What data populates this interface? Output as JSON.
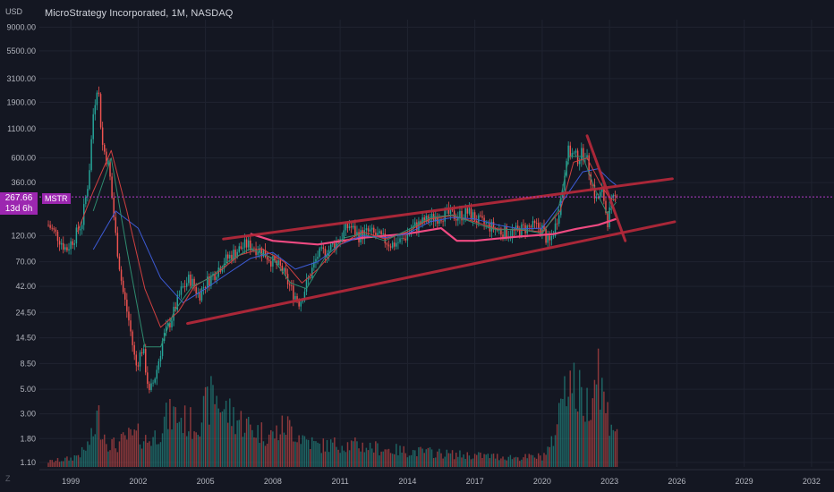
{
  "header": {
    "title": "MicroStrategy Incorporated, 1M, NASDAQ",
    "unit": "USD"
  },
  "price_badge": {
    "price": "267.66",
    "countdown": "13d 6h",
    "ticker": "MSTR"
  },
  "footer_mark": "Z",
  "colors": {
    "background": "#141722",
    "grid": "#1f2330",
    "up": "#26a69a",
    "down": "#ef5350",
    "trendline": "#b2283a",
    "price_line": "#b43cc8",
    "ma_pink": "#f04a82",
    "ma_blue": "#3d5bd6",
    "ma_red": "#d04040",
    "ma_green": "#2e8b6f"
  },
  "chart_data": {
    "type": "candlestick",
    "title": "MicroStrategy Incorporated, 1M, NASDAQ",
    "y_scale": "log",
    "ylabel": "USD",
    "ylim": [
      1.0,
      10500
    ],
    "xlim": [
      1997.6,
      2033.0
    ],
    "y_ticks": [
      "9000.00",
      "5500.00",
      "3100.00",
      "1900.00",
      "1100.00",
      "600.00",
      "360.00",
      "267.66",
      "120.00",
      "70.00",
      "42.00",
      "24.50",
      "14.50",
      "8.50",
      "5.00",
      "3.00",
      "1.80",
      "1.10"
    ],
    "y_tick_values": [
      9000,
      5500,
      3100,
      1900,
      1100,
      600,
      360,
      267.66,
      120,
      70,
      42,
      24.5,
      14.5,
      8.5,
      5,
      3,
      1.8,
      1.1
    ],
    "x_ticks": [
      "1999",
      "2002",
      "2005",
      "2008",
      "2011",
      "2014",
      "2017",
      "2020",
      "2023",
      "2026",
      "2029",
      "2032"
    ],
    "x_tick_values": [
      1999,
      2002,
      2005,
      2008,
      2011,
      2014,
      2017,
      2020,
      2023,
      2026,
      2029,
      2032
    ],
    "last_price": 267.66,
    "grid": true,
    "price_path": [
      [
        1998.0,
        150
      ],
      [
        1998.4,
        120
      ],
      [
        1998.8,
        90
      ],
      [
        1999.2,
        120
      ],
      [
        1999.5,
        160
      ],
      [
        1999.8,
        400
      ],
      [
        2000.0,
        1500
      ],
      [
        2000.2,
        3000
      ],
      [
        2000.4,
        800
      ],
      [
        2000.7,
        500
      ],
      [
        2001.0,
        120
      ],
      [
        2001.3,
        40
      ],
      [
        2001.6,
        20
      ],
      [
        2001.9,
        8
      ],
      [
        2002.2,
        12
      ],
      [
        2002.5,
        4.5
      ],
      [
        2002.8,
        7
      ],
      [
        2003.1,
        14
      ],
      [
        2003.5,
        22
      ],
      [
        2003.9,
        38
      ],
      [
        2004.3,
        50
      ],
      [
        2004.7,
        35
      ],
      [
        2005.0,
        45
      ],
      [
        2005.4,
        55
      ],
      [
        2005.8,
        70
      ],
      [
        2006.3,
        85
      ],
      [
        2006.8,
        100
      ],
      [
        2007.2,
        95
      ],
      [
        2007.6,
        85
      ],
      [
        2008.0,
        70
      ],
      [
        2008.4,
        60
      ],
      [
        2008.8,
        40
      ],
      [
        2009.2,
        30
      ],
      [
        2009.6,
        50
      ],
      [
        2010.0,
        80
      ],
      [
        2010.5,
        90
      ],
      [
        2011.0,
        115
      ],
      [
        2011.4,
        150
      ],
      [
        2011.8,
        120
      ],
      [
        2012.3,
        130
      ],
      [
        2012.8,
        115
      ],
      [
        2013.3,
        100
      ],
      [
        2013.8,
        110
      ],
      [
        2014.2,
        140
      ],
      [
        2014.7,
        160
      ],
      [
        2015.2,
        175
      ],
      [
        2015.7,
        190
      ],
      [
        2016.2,
        180
      ],
      [
        2016.7,
        195
      ],
      [
        2017.2,
        160
      ],
      [
        2017.7,
        145
      ],
      [
        2018.2,
        130
      ],
      [
        2018.7,
        128
      ],
      [
        2019.2,
        140
      ],
      [
        2019.7,
        145
      ],
      [
        2020.0,
        140
      ],
      [
        2020.3,
        100
      ],
      [
        2020.6,
        150
      ],
      [
        2020.9,
        300
      ],
      [
        2021.1,
        700
      ],
      [
        2021.3,
        650
      ],
      [
        2021.6,
        600
      ],
      [
        2021.9,
        700
      ],
      [
        2022.1,
        450
      ],
      [
        2022.4,
        250
      ],
      [
        2022.7,
        300
      ],
      [
        2022.9,
        160
      ],
      [
        2023.1,
        240
      ],
      [
        2023.3,
        267.66
      ]
    ],
    "volume_path": [
      [
        1998.0,
        0.05
      ],
      [
        1999.0,
        0.08
      ],
      [
        1999.6,
        0.15
      ],
      [
        2000.0,
        0.3
      ],
      [
        2000.2,
        0.5
      ],
      [
        2000.6,
        0.25
      ],
      [
        2001.0,
        0.2
      ],
      [
        2001.5,
        0.28
      ],
      [
        2002.0,
        0.3
      ],
      [
        2002.4,
        0.25
      ],
      [
        2002.8,
        0.3
      ],
      [
        2003.2,
        0.45
      ],
      [
        2003.6,
        0.5
      ],
      [
        2004.0,
        0.45
      ],
      [
        2004.5,
        0.4
      ],
      [
        2005.0,
        0.55
      ],
      [
        2005.4,
        0.7
      ],
      [
        2005.8,
        0.55
      ],
      [
        2006.5,
        0.45
      ],
      [
        2007.2,
        0.35
      ],
      [
        2008.0,
        0.3
      ],
      [
        2008.6,
        0.4
      ],
      [
        2009.2,
        0.3
      ],
      [
        2010.0,
        0.2
      ],
      [
        2011.0,
        0.22
      ],
      [
        2012.0,
        0.2
      ],
      [
        2013.0,
        0.17
      ],
      [
        2014.0,
        0.15
      ],
      [
        2015.0,
        0.14
      ],
      [
        2016.0,
        0.12
      ],
      [
        2017.0,
        0.11
      ],
      [
        2018.0,
        0.1
      ],
      [
        2019.0,
        0.09
      ],
      [
        2020.0,
        0.1
      ],
      [
        2020.4,
        0.2
      ],
      [
        2020.8,
        0.55
      ],
      [
        2021.0,
        0.95
      ],
      [
        2021.2,
        0.85
      ],
      [
        2021.6,
        0.7
      ],
      [
        2022.0,
        0.6
      ],
      [
        2022.5,
        1.0
      ],
      [
        2022.8,
        0.55
      ],
      [
        2023.2,
        0.4
      ]
    ],
    "moving_averages": [
      {
        "color": "#f04a82",
        "width": 2.2,
        "points": [
          [
            2007.0,
            125
          ],
          [
            2008.0,
            108
          ],
          [
            2010.0,
            100
          ],
          [
            2012.0,
            115
          ],
          [
            2014.0,
            125
          ],
          [
            2015.5,
            140
          ],
          [
            2016.2,
            108
          ],
          [
            2017.0,
            108
          ],
          [
            2018.0,
            113
          ],
          [
            2019.0,
            118
          ],
          [
            2020.5,
            124
          ],
          [
            2021.5,
            138
          ],
          [
            2022.5,
            150
          ],
          [
            2023.3,
            170
          ]
        ]
      },
      {
        "color": "#3d5bd6",
        "width": 1,
        "points": [
          [
            2000.0,
            90
          ],
          [
            2001.0,
            200
          ],
          [
            2002.0,
            140
          ],
          [
            2003.0,
            50
          ],
          [
            2004.0,
            30
          ],
          [
            2005.0,
            40
          ],
          [
            2006.0,
            55
          ],
          [
            2007.0,
            75
          ],
          [
            2008.0,
            85
          ],
          [
            2009.0,
            60
          ],
          [
            2010.0,
            70
          ],
          [
            2011.0,
            100
          ],
          [
            2012.0,
            120
          ],
          [
            2013.0,
            115
          ],
          [
            2014.0,
            125
          ],
          [
            2015.0,
            160
          ],
          [
            2016.0,
            175
          ],
          [
            2017.0,
            170
          ],
          [
            2018.0,
            150
          ],
          [
            2019.0,
            138
          ],
          [
            2020.0,
            140
          ],
          [
            2021.0,
            260
          ],
          [
            2021.8,
            450
          ],
          [
            2022.5,
            480
          ],
          [
            2023.0,
            380
          ],
          [
            2023.3,
            340
          ]
        ]
      },
      {
        "color": "#d04040",
        "width": 1,
        "points": [
          [
            1999.3,
            130
          ],
          [
            2000.0,
            300
          ],
          [
            2000.8,
            700
          ],
          [
            2001.5,
            200
          ],
          [
            2002.3,
            40
          ],
          [
            2003.0,
            18
          ],
          [
            2003.8,
            25
          ],
          [
            2004.5,
            42
          ],
          [
            2005.5,
            55
          ],
          [
            2006.5,
            80
          ],
          [
            2007.5,
            92
          ],
          [
            2008.5,
            70
          ],
          [
            2009.3,
            45
          ],
          [
            2010.0,
            60
          ],
          [
            2011.0,
            100
          ],
          [
            2012.0,
            130
          ],
          [
            2013.0,
            112
          ],
          [
            2014.0,
            130
          ],
          [
            2015.0,
            170
          ],
          [
            2016.0,
            182
          ],
          [
            2017.0,
            160
          ],
          [
            2018.0,
            138
          ],
          [
            2019.0,
            135
          ],
          [
            2020.0,
            130
          ],
          [
            2020.8,
            200
          ],
          [
            2021.4,
            550
          ],
          [
            2022.0,
            600
          ],
          [
            2022.6,
            350
          ],
          [
            2023.0,
            260
          ],
          [
            2023.3,
            250
          ]
        ]
      },
      {
        "color": "#2e8b6f",
        "width": 1,
        "points": [
          [
            2000.0,
            200
          ],
          [
            2000.8,
            600
          ],
          [
            2001.5,
            90
          ],
          [
            2002.3,
            12
          ],
          [
            2003.0,
            12
          ],
          [
            2003.6,
            25
          ],
          [
            2004.4,
            42
          ],
          [
            2005.2,
            50
          ],
          [
            2006.0,
            70
          ],
          [
            2007.0,
            92
          ],
          [
            2008.0,
            75
          ],
          [
            2008.8,
            45
          ],
          [
            2009.5,
            40
          ],
          [
            2010.3,
            75
          ],
          [
            2011.2,
            115
          ],
          [
            2012.0,
            125
          ],
          [
            2013.0,
            108
          ],
          [
            2014.0,
            135
          ],
          [
            2015.0,
            175
          ],
          [
            2016.0,
            185
          ],
          [
            2017.0,
            155
          ],
          [
            2018.0,
            135
          ],
          [
            2019.0,
            138
          ],
          [
            2020.0,
            125
          ],
          [
            2020.7,
            200
          ],
          [
            2021.2,
            620
          ],
          [
            2021.8,
            620
          ],
          [
            2022.4,
            300
          ],
          [
            2022.9,
            190
          ],
          [
            2023.3,
            240
          ]
        ]
      }
    ],
    "trendlines": [
      {
        "from": [
          2005.8,
          112
        ],
        "to": [
          2025.8,
          390
        ]
      },
      {
        "from": [
          2004.2,
          19.5
        ],
        "to": [
          2025.9,
          160
        ]
      },
      {
        "from": [
          2022.0,
          950
        ],
        "to": [
          2023.7,
          108
        ]
      }
    ]
  }
}
